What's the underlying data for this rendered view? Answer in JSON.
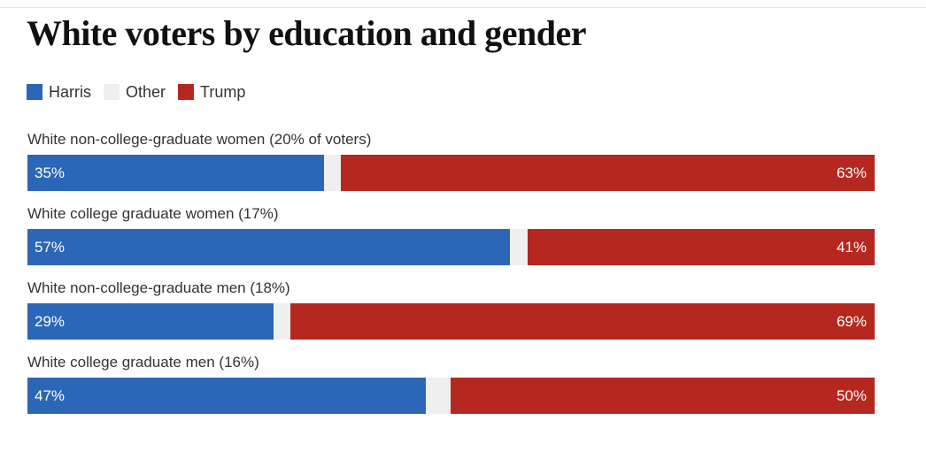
{
  "chart_data": {
    "type": "bar",
    "orientation": "horizontal",
    "stacked": true,
    "title": "White voters by education and gender",
    "legend": [
      "Harris",
      "Other",
      "Trump"
    ],
    "colors": {
      "Harris": "#2b67b6",
      "Other": "#efefef",
      "Trump": "#b5281f"
    },
    "categories": [
      "White non-college-graduate women (20% of voters)",
      "White college graduate women (17%)",
      "White non-college-graduate men (18%)",
      "White college graduate men (16%)"
    ],
    "series": [
      {
        "name": "Harris",
        "values": [
          35,
          57,
          29,
          47
        ],
        "labels": [
          "35%",
          "57%",
          "29%",
          "47%"
        ]
      },
      {
        "name": "Other",
        "values": [
          2,
          2,
          2,
          3
        ]
      },
      {
        "name": "Trump",
        "values": [
          63,
          41,
          69,
          50
        ],
        "labels": [
          "63%",
          "41%",
          "69%",
          "50%"
        ]
      }
    ],
    "xlim": [
      0,
      100
    ]
  }
}
